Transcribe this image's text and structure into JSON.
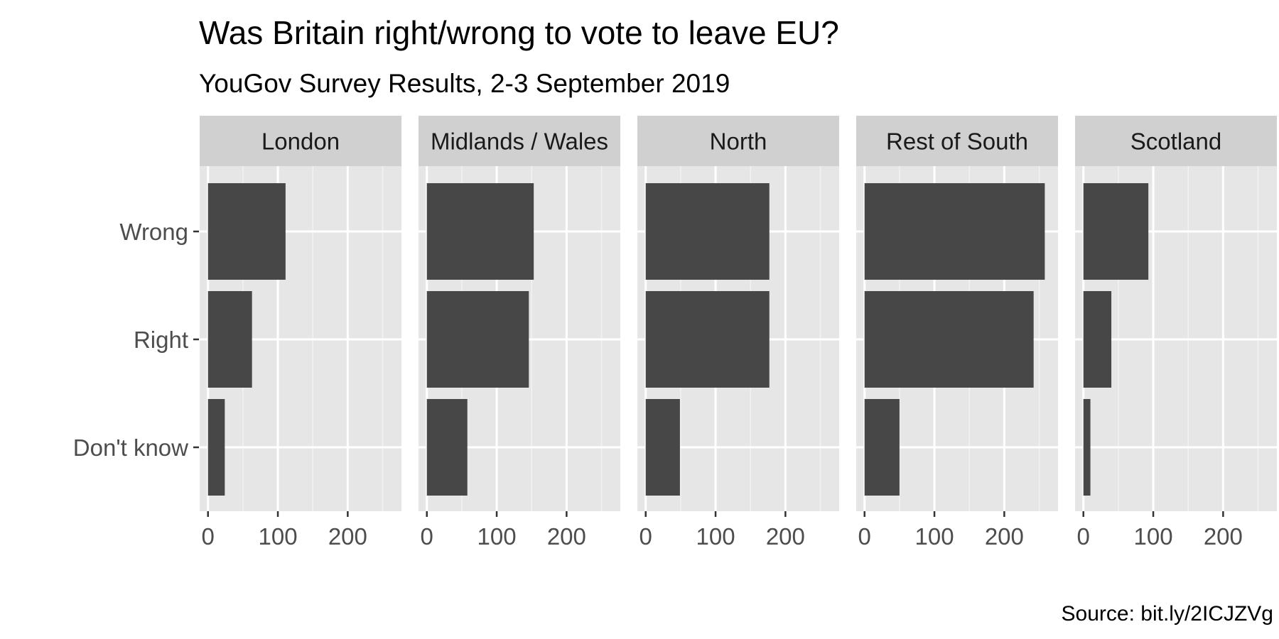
{
  "title": "Was Britain right/wrong to vote to leave EU?",
  "subtitle": "YouGov Survey Results, 2-3 September 2019",
  "caption": "Source: bit.ly/2ICJZVg",
  "chart_data": {
    "type": "bar",
    "orientation": "horizontal",
    "faceted": true,
    "categories": [
      "Wrong",
      "Right",
      "Don't know"
    ],
    "xlim": [
      0,
      265
    ],
    "x_ticks": [
      0,
      100,
      200
    ],
    "x_tick_labels": [
      "0",
      "100",
      "200"
    ],
    "grid": true,
    "panels": [
      {
        "name": "London",
        "values": [
          111,
          63,
          24
        ]
      },
      {
        "name": "Midlands / Wales",
        "values": [
          153,
          146,
          58
        ]
      },
      {
        "name": "North",
        "values": [
          177,
          177,
          49
        ]
      },
      {
        "name": "Rest of South",
        "values": [
          258,
          242,
          50
        ]
      },
      {
        "name": "Scotland",
        "values": [
          93,
          40,
          10
        ]
      }
    ]
  },
  "colors": {
    "panel_bg": "#e6e6e6",
    "strip_bg": "#d0d0d0",
    "bar": "#474747",
    "grid_major": "#ffffff",
    "grid_minor": "#f2f2f2",
    "axis_text": "#4d4d4d",
    "tick": "#333333"
  }
}
